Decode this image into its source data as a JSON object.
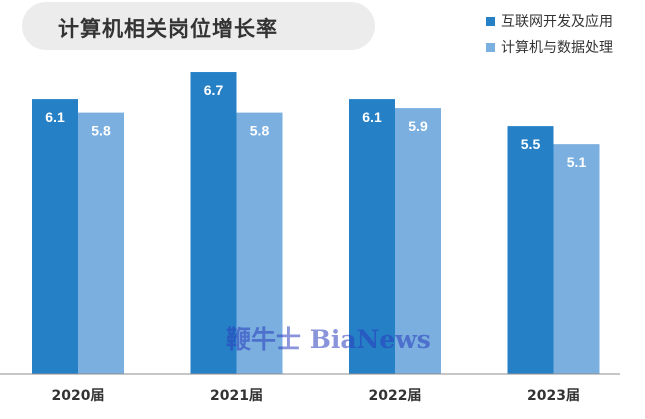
{
  "header": {
    "title": "计算机相关岗位增长率"
  },
  "watermark": {
    "text": "鞭牛士 BiaNews"
  },
  "colors": {
    "series1": "#2680c6",
    "series2": "#7aafe0",
    "axis": "#8c8c8c",
    "label_text": "#ffffff",
    "tick_text": "#333333"
  },
  "chart_data": {
    "type": "bar",
    "title": "计算机相关岗位增长率",
    "xlabel": "",
    "ylabel": "",
    "categories": [
      "2020届",
      "2021届",
      "2022届",
      "2023届"
    ],
    "series": [
      {
        "name": "互联网开发及应用",
        "values": [
          6.1,
          6.7,
          6.1,
          5.5
        ]
      },
      {
        "name": "计算机与数据处理",
        "values": [
          5.8,
          5.8,
          5.9,
          5.1
        ]
      }
    ],
    "ylim": [
      0,
      7.3
    ],
    "grid": false,
    "legend": "top-right"
  }
}
